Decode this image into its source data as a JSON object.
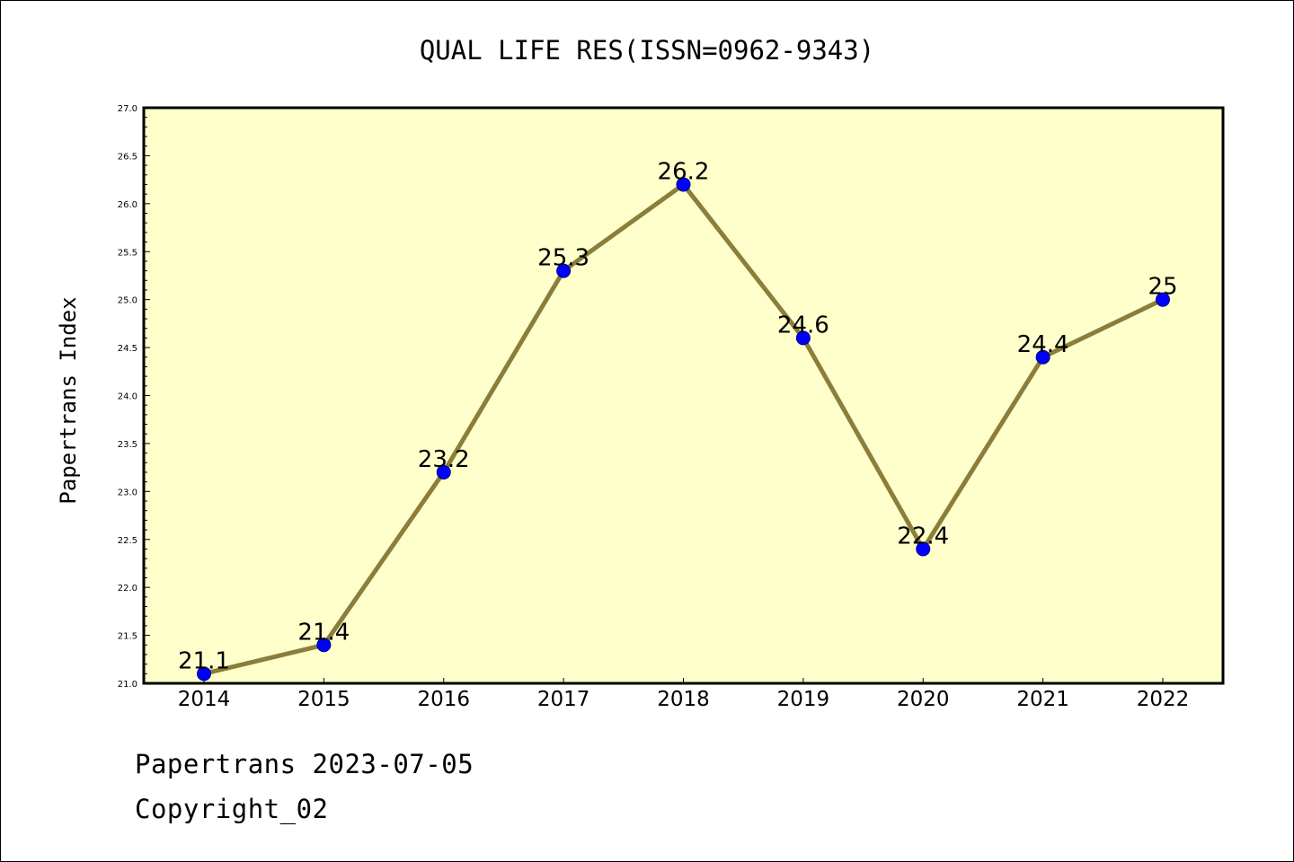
{
  "chart_data": {
    "type": "line",
    "title": "QUAL LIFE RES(ISSN=0962-9343)",
    "xlabel": "",
    "ylabel": "Papertrans Index",
    "categories": [
      "2014",
      "2015",
      "2016",
      "2017",
      "2018",
      "2019",
      "2020",
      "2021",
      "2022"
    ],
    "series": [
      {
        "values": [
          21.1,
          21.4,
          23.2,
          25.3,
          26.2,
          24.6,
          22.4,
          24.4,
          25
        ],
        "labels": [
          "21.1",
          "21.4",
          "23.2",
          "25.3",
          "26.2",
          "24.6",
          "22.4",
          "24.4",
          "25"
        ]
      }
    ],
    "ylim": [
      21.0,
      27.0
    ],
    "yticks": [
      "21.0",
      "21.5",
      "22.0",
      "22.5",
      "23.0",
      "23.5",
      "24.0",
      "24.5",
      "25.0",
      "25.5",
      "26.0",
      "26.5",
      "27.0"
    ],
    "grid": false,
    "legend": "none",
    "colors": {
      "plot_background": "#ffffcc",
      "line": "#8b7d3a",
      "marker": "#0000ff",
      "marker_edge": "#000080"
    }
  },
  "footer": {
    "date_line": "Papertrans 2023-07-05",
    "copyright": "Copyright_02"
  }
}
